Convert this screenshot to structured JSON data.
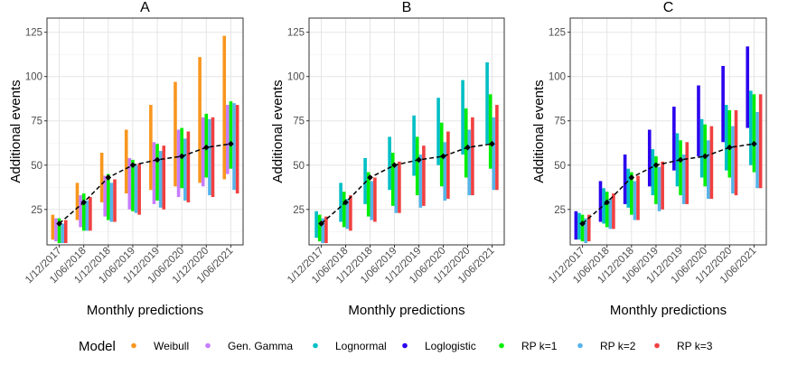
{
  "chart_data": {
    "type": "bar",
    "description_free": true,
    "xlabel": "Monthly predictions",
    "ylabel": "Additional events",
    "ylim": [
      5,
      133
    ],
    "yticks": [
      25,
      50,
      75,
      100,
      125
    ],
    "categories": [
      "1/12/2017",
      "1/06/2018",
      "1/12/2018",
      "1/06/2019",
      "1/12/2019",
      "1/06/2020",
      "1/12/2020",
      "1/06/2021"
    ],
    "observed": {
      "name": "Observed",
      "values": [
        17,
        29,
        43,
        50,
        53,
        55,
        60,
        62
      ]
    },
    "legend": {
      "title": "Model",
      "position": "bottom",
      "entries": [
        {
          "name": "Weibull",
          "color": "#F8961E"
        },
        {
          "name": "Gen. Gamma",
          "color": "#C77CFF"
        },
        {
          "name": "Lognormal",
          "color": "#00BFC4"
        },
        {
          "name": "Loglogistic",
          "color": "#2B00EE"
        },
        {
          "name": "RP k=1",
          "color": "#00EE00"
        },
        {
          "name": "RP k=2",
          "color": "#56B4E9"
        },
        {
          "name": "RP k=3",
          "color": "#F04040"
        }
      ]
    },
    "panels": [
      {
        "title": "A",
        "series": [
          {
            "name": "Weibull",
            "low": [
              8,
              19,
              29,
              34,
              36,
              38,
              40,
              42
            ],
            "high": [
              22,
              40,
              57,
              70,
              84,
              97,
              111,
              123
            ]
          },
          {
            "name": "Gen. Gamma",
            "low": [
              7,
              15,
              21,
              25,
              28,
              32,
              38,
              45
            ],
            "high": [
              20,
              33,
              44,
              54,
              63,
              70,
              77,
              84
            ]
          },
          {
            "name": "RP k=1",
            "low": [
              6,
              13,
              19,
              24,
              30,
              37,
              43,
              48
            ],
            "high": [
              20,
              34,
              45,
              53,
              62,
              71,
              79,
              86
            ]
          },
          {
            "name": "RP k=2",
            "low": [
              6,
              13,
              18,
              23,
              26,
              30,
              33,
              36
            ],
            "high": [
              17,
              30,
              40,
              50,
              58,
              65,
              76,
              85
            ]
          },
          {
            "name": "RP k=3",
            "low": [
              6,
              13,
              18,
              22,
              25,
              29,
              32,
              34
            ],
            "high": [
              19,
              32,
              42,
              51,
              61,
              69,
              77,
              84
            ]
          }
        ]
      },
      {
        "title": "B",
        "series": [
          {
            "name": "Lognormal",
            "low": [
              9,
              18,
              28,
              36,
              44,
              50,
              56,
              62
            ],
            "high": [
              24,
              40,
              54,
              66,
              78,
              88,
              98,
              108
            ]
          },
          {
            "name": "RP k=1",
            "low": [
              7,
              15,
              21,
              27,
              33,
              38,
              43,
              48
            ],
            "high": [
              22,
              35,
              46,
              57,
              66,
              74,
              82,
              90
            ]
          },
          {
            "name": "RP k=2",
            "low": [
              6,
              14,
              19,
              23,
              26,
              30,
              33,
              36
            ],
            "high": [
              20,
              31,
              41,
              50,
              56,
              63,
              70,
              77
            ]
          },
          {
            "name": "RP k=3",
            "low": [
              6,
              13,
              18,
              23,
              27,
              31,
              33,
              36
            ],
            "high": [
              21,
              33,
              43,
              52,
              61,
              69,
              77,
              84
            ]
          }
        ]
      },
      {
        "title": "C",
        "series": [
          {
            "name": "Loglogistic",
            "low": [
              8,
              18,
              28,
              38,
              47,
              55,
              63,
              71
            ],
            "high": [
              24,
              41,
              56,
              70,
              83,
              95,
              106,
              117
            ]
          },
          {
            "name": "Lognormal",
            "low": [
              8,
              17,
              26,
              33,
              38,
              43,
              47,
              50
            ],
            "high": [
              23,
              37,
              48,
              59,
              68,
              76,
              84,
              92
            ]
          },
          {
            "name": "RP k=1",
            "low": [
              7,
              15,
              22,
              28,
              33,
              38,
              43,
              46
            ],
            "high": [
              22,
              35,
              46,
              55,
              64,
              73,
              81,
              90
            ]
          },
          {
            "name": "RP k=2",
            "low": [
              6,
              14,
              19,
              24,
              28,
              31,
              34,
              37
            ],
            "high": [
              20,
              31,
              41,
              49,
              56,
              64,
              72,
              80
            ]
          },
          {
            "name": "RP k=3",
            "low": [
              7,
              14,
              19,
              25,
              28,
              31,
              33,
              37
            ],
            "high": [
              22,
              34,
              44,
              52,
              63,
              72,
              81,
              90
            ]
          }
        ]
      }
    ]
  }
}
